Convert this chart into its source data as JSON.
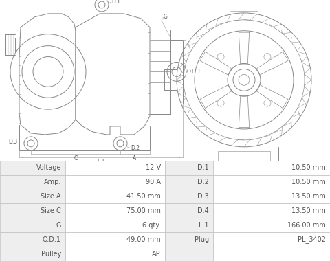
{
  "table_rows": [
    {
      "left_label": "Voltage",
      "left_val": "12 V",
      "right_label": "D.1",
      "right_val": "10.50 mm"
    },
    {
      "left_label": "Amp.",
      "left_val": "90 A",
      "right_label": "D.2",
      "right_val": "10.50 mm"
    },
    {
      "left_label": "Size A",
      "left_val": "41.50 mm",
      "right_label": "D.3",
      "right_val": "13.50 mm"
    },
    {
      "left_label": "Size C",
      "left_val": "75.00 mm",
      "right_label": "D.4",
      "right_val": "13.50 mm"
    },
    {
      "left_label": "G",
      "left_val": "6 qty.",
      "right_label": "L.1",
      "right_val": "166.00 mm"
    },
    {
      "left_label": "O.D.1",
      "left_val": "49.00 mm",
      "right_label": "Plug",
      "right_val": "PL_3402"
    },
    {
      "left_label": "Pulley",
      "left_val": "AP",
      "right_label": "",
      "right_val": ""
    }
  ],
  "bg_color": "#ffffff",
  "cell_bg_gray": "#eeeeee",
  "cell_bg_white": "#ffffff",
  "table_border": "#c0c0c0",
  "line_color": "#888888",
  "dim_color": "#aaaaaa",
  "text_color": "#555555",
  "font_size": 7,
  "dim_font_size": 5.5
}
